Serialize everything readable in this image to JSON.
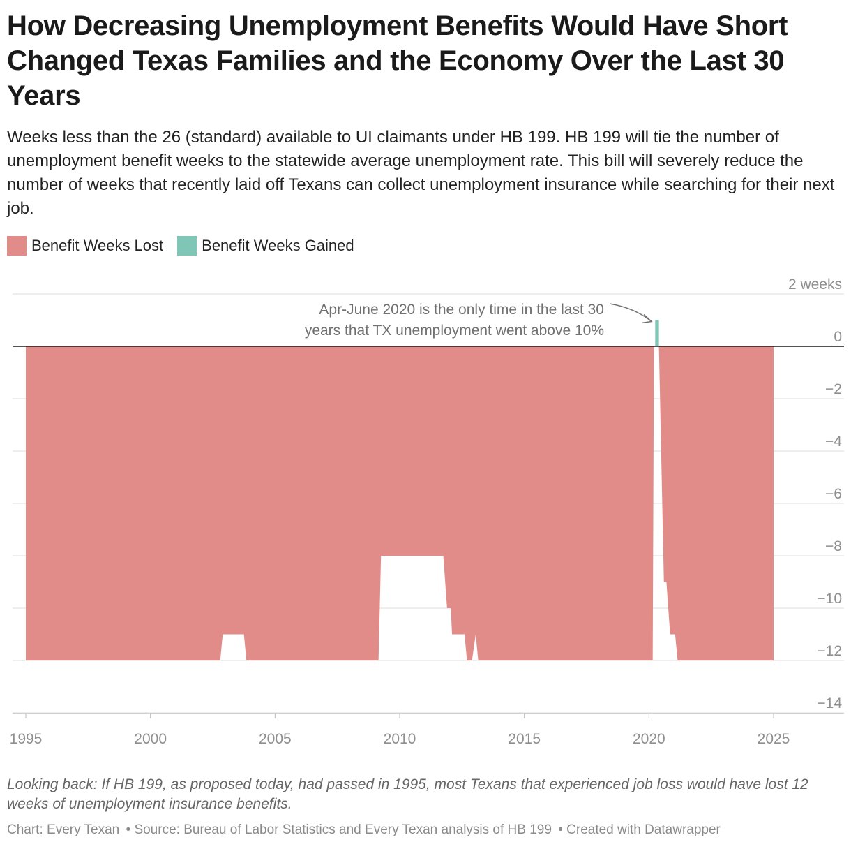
{
  "header": {
    "title": "How Decreasing Unemployment Benefits Would Have Short Changed Texas Families and the Economy Over the Last 30 Years",
    "subtitle": "Weeks less than the 26 (standard) available to UI claimants under HB 199. HB 199 will tie the number of unemployment benefit weeks to the statewide average unemployment rate. This bill will severely reduce the number of weeks that recently laid off Texans can collect unemployment insurance while searching for their next job."
  },
  "legend": [
    {
      "label": "Benefit Weeks Lost",
      "color": "#e28c8a"
    },
    {
      "label": "Benefit Weeks Gained",
      "color": "#7fc6b6"
    }
  ],
  "chart_data": {
    "type": "area",
    "title": "",
    "xlabel": "",
    "ylabel": "",
    "xlim": [
      1995,
      2025
    ],
    "ylim": [
      -14,
      2
    ],
    "x_ticks": [
      "1995",
      "2000",
      "2005",
      "2010",
      "2015",
      "2020",
      "2025"
    ],
    "y_ticks": [
      {
        "value": 2,
        "label": "2 weeks"
      },
      {
        "value": 0,
        "label": "0"
      },
      {
        "value": -2,
        "label": "−2"
      },
      {
        "value": -4,
        "label": "−4"
      },
      {
        "value": -6,
        "label": "−6"
      },
      {
        "value": -8,
        "label": "−8"
      },
      {
        "value": -10,
        "label": "−10"
      },
      {
        "value": -12,
        "label": "−12"
      },
      {
        "value": -14,
        "label": "−14"
      }
    ],
    "series": [
      {
        "name": "Benefit Weeks Lost",
        "color": "#e28c8a",
        "points": [
          [
            1995.0,
            -12
          ],
          [
            2002.8,
            -12
          ],
          [
            2002.9,
            -11
          ],
          [
            2003.75,
            -11
          ],
          [
            2003.85,
            -12
          ],
          [
            2009.15,
            -12
          ],
          [
            2009.25,
            -8
          ],
          [
            2011.75,
            -8
          ],
          [
            2011.9,
            -10
          ],
          [
            2012.05,
            -10
          ],
          [
            2012.1,
            -11
          ],
          [
            2012.6,
            -11
          ],
          [
            2012.7,
            -12
          ],
          [
            2012.9,
            -12
          ],
          [
            2013.05,
            -11
          ],
          [
            2013.15,
            -12
          ],
          [
            2020.15,
            -12
          ],
          [
            2020.2,
            0
          ],
          [
            2020.4,
            0
          ],
          [
            2020.6,
            -9
          ],
          [
            2020.7,
            -9
          ],
          [
            2020.85,
            -11
          ],
          [
            2021.05,
            -11
          ],
          [
            2021.15,
            -12
          ],
          [
            2025.0,
            -12
          ]
        ]
      },
      {
        "name": "Benefit Weeks Gained",
        "color": "#7fc6b6",
        "points": [
          [
            2020.25,
            0
          ],
          [
            2020.25,
            1
          ],
          [
            2020.4,
            1
          ],
          [
            2020.4,
            0
          ]
        ]
      }
    ],
    "annotations": [
      {
        "lines": [
          "Apr-June 2020 is the only time in the last 30",
          "years that TX unemployment went above 10%"
        ],
        "target": [
          2020.3,
          1
        ]
      }
    ]
  },
  "notes": "Looking back: If HB 199, as proposed today, had passed in 1995, most Texans that experienced job loss would have lost 12 weeks of unemployment insurance benefits.",
  "footer": {
    "chart_credit": "Chart: Every Texan",
    "source": "• Source: Bureau of Labor Statistics and Every Texan analysis of HB 199",
    "tool": "• Created with Datawrapper"
  }
}
